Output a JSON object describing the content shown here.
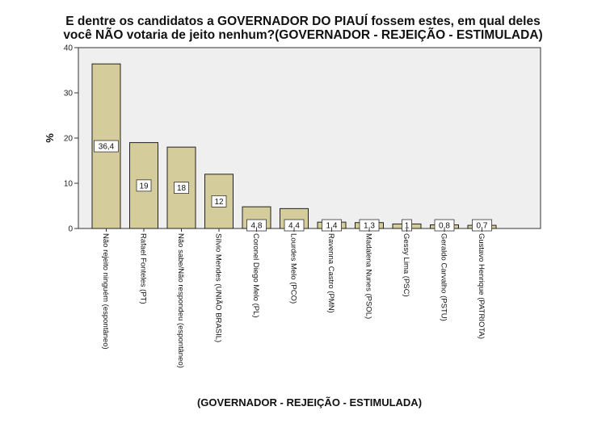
{
  "chart_data": {
    "type": "bar",
    "title_line1": "E dentre os candidatos a GOVERNADOR DO PIAUÍ fossem estes, em qual deles",
    "title_line2": "você NÃO votaria de jeito nenhum?(GOVERNADOR - REJEIÇÃO - ESTIMULADA)",
    "xlabel": "(GOVERNADOR - REJEIÇÃO - ESTIMULADA)",
    "ylabel": "%",
    "ylim": [
      0,
      40
    ],
    "yticks": [
      "0",
      "10",
      "20",
      "30",
      "40"
    ],
    "categories": [
      "Não rejeito ninguém (espontâneo)",
      "Rafael Fonteles (PT)",
      "Não sabe/Não respondeu (espontâneo)",
      "Sílvio Mendes (UNIÃO BRASIL)",
      "Coronel Diego Melo (PL)",
      "Lourdes Melo (PCO)",
      "Ravenna Castro (PMN)",
      "Madalena Nunes (PSOL)",
      "Gessy Lima (PSC)",
      "Geraldo Carvalho (PSTU)",
      "Gustavo Henrique (PATRIOTA)"
    ],
    "values": [
      36.4,
      19,
      18,
      12,
      4.8,
      4.4,
      1.4,
      1.3,
      1,
      0.8,
      0.7
    ],
    "value_labels": [
      "36,4",
      "19",
      "18",
      "12",
      "4,8",
      "4,4",
      "1,4",
      "1,3",
      "1",
      "0,8",
      "0,7"
    ],
    "bar_color": "#d5cc9c",
    "plot_background": "#efefef",
    "grid": false,
    "legend": "none"
  }
}
